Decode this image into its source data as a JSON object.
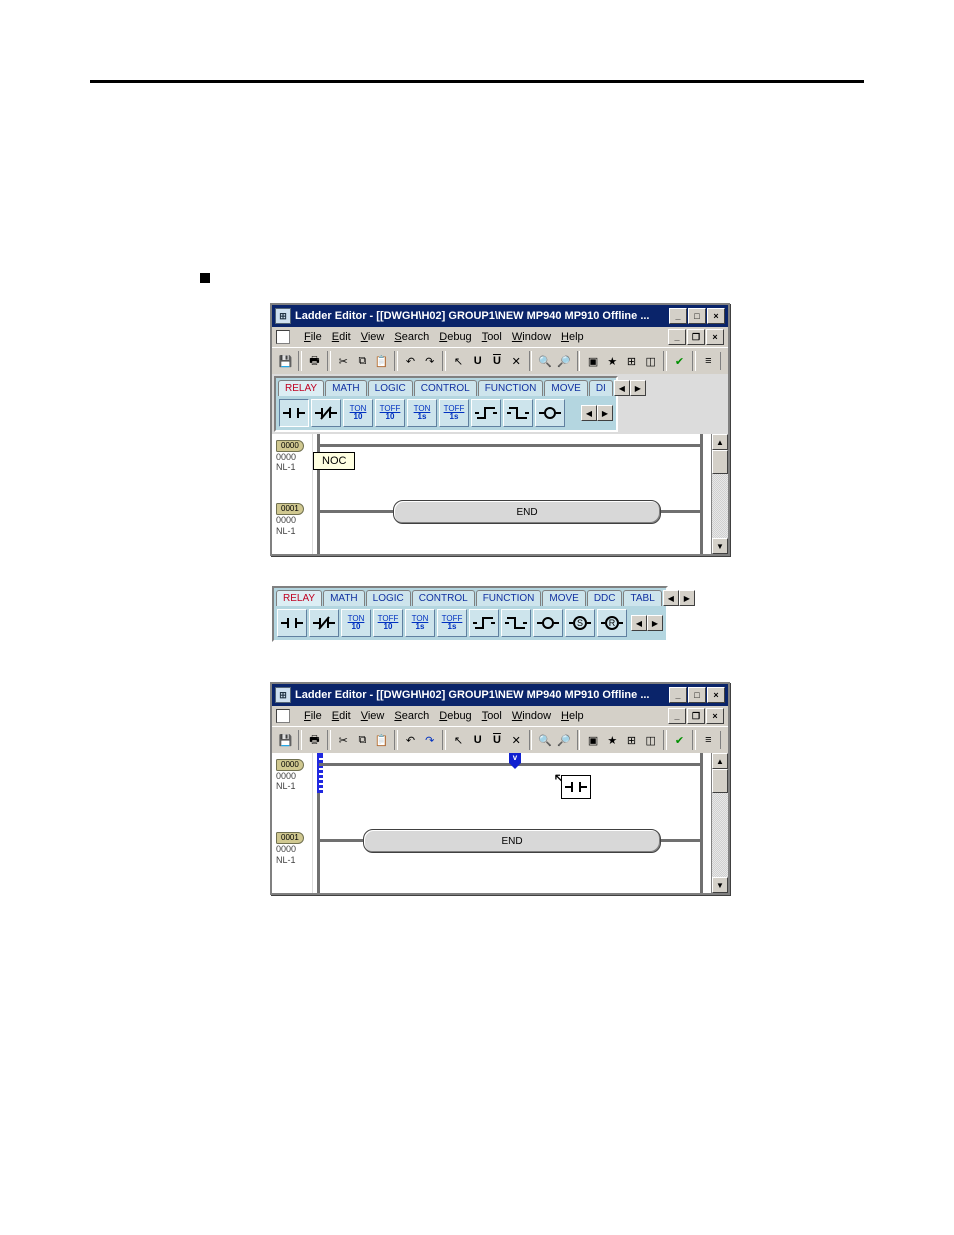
{
  "horizontal_rule_color": "#000000",
  "fig1": {
    "titlebar": "Ladder Editor - [[DWGH\\H02]    GROUP1\\NEW  MP940  MP910    Offline ...",
    "title_bg": "#0a246a",
    "title_color": "#ffffff",
    "menus": [
      "File",
      "Edit",
      "View",
      "Search",
      "Debug",
      "Tool",
      "Window",
      "Help"
    ],
    "palette_tabs": [
      "RELAY",
      "MATH",
      "LOGIC",
      "CONTROL",
      "FUNCTION",
      "MOVE",
      "DI"
    ],
    "palette_active": "RELAY",
    "palette_buttons": [
      {
        "kind": "noc"
      },
      {
        "kind": "ncc"
      },
      {
        "kind": "ton10",
        "top": "TON",
        "sub": "10"
      },
      {
        "kind": "toff10",
        "top": "TOFF",
        "sub": "10"
      },
      {
        "kind": "ton1s",
        "top": "TON",
        "sub": "1s"
      },
      {
        "kind": "toff1s",
        "top": "TOFF",
        "sub": "1s"
      },
      {
        "kind": "rise"
      },
      {
        "kind": "fall"
      },
      {
        "kind": "coil"
      }
    ],
    "tooltip": "NOC",
    "tooltip_bg": "#ffffe1",
    "rung0": {
      "tag": "0000",
      "addr": "0000",
      "nl": "NL-1"
    },
    "rung1": {
      "tag": "0001",
      "addr": "0000",
      "nl": "NL-1"
    },
    "end_label": "END",
    "rail_color": "#707070",
    "palette_bg": "#b4d6e0"
  },
  "fig2": {
    "tabs": [
      "RELAY",
      "MATH",
      "LOGIC",
      "CONTROL",
      "FUNCTION",
      "MOVE",
      "DDC",
      "TABL"
    ],
    "active": "RELAY",
    "buttons": [
      {
        "kind": "noc"
      },
      {
        "kind": "ncc"
      },
      {
        "kind": "ton10",
        "top": "TON",
        "sub": "10"
      },
      {
        "kind": "toff10",
        "top": "TOFF",
        "sub": "10"
      },
      {
        "kind": "ton1s",
        "top": "TON",
        "sub": "1s"
      },
      {
        "kind": "toff1s",
        "top": "TOFF",
        "sub": "1s"
      },
      {
        "kind": "rise"
      },
      {
        "kind": "fall"
      },
      {
        "kind": "coil"
      },
      {
        "kind": "set",
        "sym": "S"
      },
      {
        "kind": "reset",
        "sym": "R"
      }
    ],
    "bg": "#b4d6e0"
  },
  "fig3": {
    "titlebar": "Ladder Editor - [[DWGH\\H02]    GROUP1\\NEW  MP940  MP910    Offline ...",
    "menus": [
      "File",
      "Edit",
      "View",
      "Search",
      "Debug",
      "Tool",
      "Window",
      "Help"
    ],
    "rung0": {
      "tag": "0000",
      "addr": "0000",
      "nl": "NL-1"
    },
    "rung1": {
      "tag": "0001",
      "addr": "0000",
      "nl": "NL-1"
    },
    "end_label": "END",
    "insert_glyph": "v",
    "focus_color": "#2028e0"
  },
  "icons": {
    "save": "💾",
    "print": "🖶",
    "cut": "✂",
    "copy": "⧉",
    "paste": "📋",
    "undo": "↶",
    "redo": "↷",
    "arrow": "↖",
    "find": "🔍",
    "min": "_",
    "max": "□",
    "close": "×",
    "restore": "❐",
    "left": "◀",
    "right": "▶",
    "up": "▲",
    "down": "▼",
    "check": "✔"
  },
  "colors": {
    "chrome": "#d4d0c8",
    "canvas": "#ffffff",
    "border": "#808080"
  }
}
